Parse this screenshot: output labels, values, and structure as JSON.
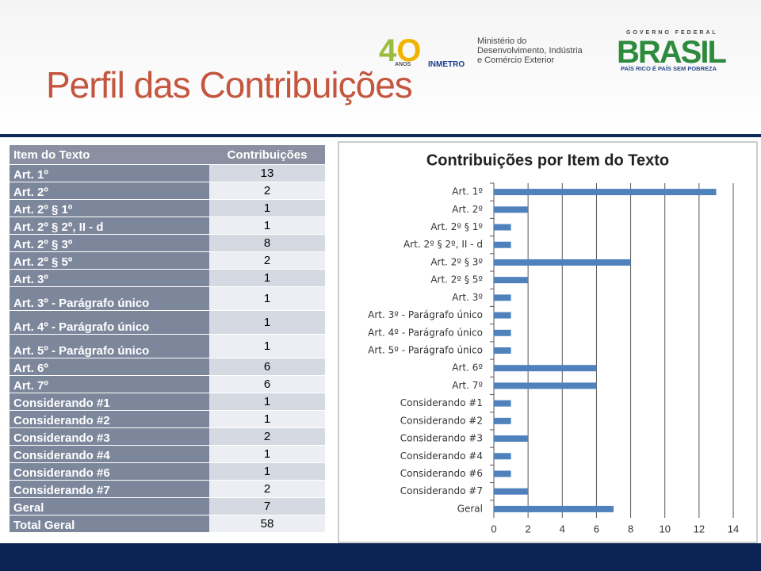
{
  "header": {
    "title": "Perfil das Contribuições",
    "logos": [
      "ANOS",
      "INMETRO",
      "Ministério do",
      "Desenvolvimento, Indústria",
      "e Comércio Exterior",
      "GOVERNO FEDERAL",
      "BRASIL",
      "PAÍS RICO É PAÍS SEM POBREZA"
    ]
  },
  "table": {
    "columns": [
      "Item do Texto",
      "Contribuições"
    ],
    "rows": [
      [
        "Art. 1º",
        13
      ],
      [
        "Art. 2º",
        2
      ],
      [
        "Art. 2º § 1º",
        1
      ],
      [
        "Art. 2º § 2º, II - d",
        1
      ],
      [
        "Art. 2º § 3º",
        8
      ],
      [
        "Art. 2º § 5º",
        2
      ],
      [
        "Art. 3º",
        1
      ],
      [
        "Art. 3º -  Parágrafo único",
        1
      ],
      [
        "Art. 4º - Parágrafo único",
        1
      ],
      [
        "Art. 5º - Parágrafo único",
        1
      ],
      [
        "Art. 6º",
        6
      ],
      [
        "Art. 7º",
        6
      ],
      [
        "Considerando #1",
        1
      ],
      [
        "Considerando #2",
        1
      ],
      [
        "Considerando #3",
        2
      ],
      [
        "Considerando #4",
        1
      ],
      [
        "Considerando #6",
        1
      ],
      [
        "Considerando #7",
        2
      ],
      [
        "Geral",
        7
      ],
      [
        "Total Geral",
        58
      ]
    ]
  },
  "chart_data": {
    "type": "hbar",
    "title": "Contribuições por Item do Texto",
    "categories": [
      "Art. 1º",
      "Art. 2º",
      "Art. 2º § 1º",
      "Art. 2º § 2º, II - d",
      "Art. 2º § 3º",
      "Art. 2º § 5º",
      "Art. 3º",
      "Art. 3º -  Parágrafo único",
      "Art. 4º - Parágrafo único",
      "Art. 5º - Parágrafo único",
      "Art. 6º",
      "Art. 7º",
      "Considerando #1",
      "Considerando #2",
      "Considerando #3",
      "Considerando #4",
      "Considerando #6",
      "Considerando #7",
      "Geral"
    ],
    "values": [
      13,
      2,
      1,
      1,
      8,
      2,
      1,
      1,
      1,
      1,
      6,
      6,
      1,
      1,
      2,
      1,
      1,
      2,
      7
    ],
    "color": "#4f81bd",
    "xlim": [
      0,
      14
    ],
    "xticks": [
      0,
      2,
      4,
      6,
      8,
      10,
      12,
      14
    ],
    "grid": true
  }
}
